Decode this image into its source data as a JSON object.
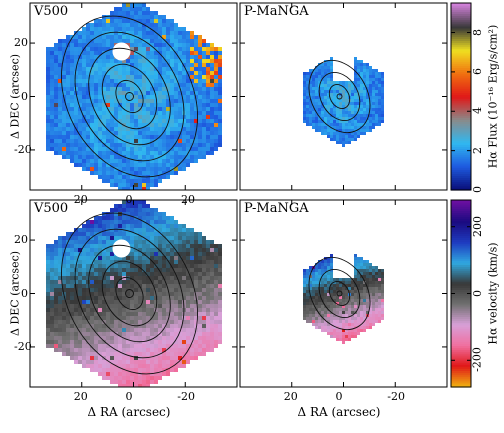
{
  "chart_data": [
    {
      "type": "heatmap",
      "row": 0,
      "col": 0,
      "panel_label": "V500",
      "quantity": "flux",
      "map": "large",
      "xlim": [
        40,
        -40
      ],
      "ylim": [
        -35,
        35
      ],
      "xticks": [
        "20",
        "0",
        "-20"
      ],
      "yticks": [
        "20",
        "0",
        "-20"
      ],
      "ylabel": "Δ DEC (arcsec)"
    },
    {
      "type": "heatmap",
      "row": 0,
      "col": 1,
      "panel_label": "P-MaNGA",
      "quantity": "flux",
      "map": "small",
      "xlim": [
        40,
        -40
      ],
      "ylim": [
        -35,
        35
      ]
    },
    {
      "type": "heatmap",
      "row": 1,
      "col": 0,
      "panel_label": "V500",
      "quantity": "velocity",
      "map": "large",
      "xlim": [
        40,
        -40
      ],
      "ylim": [
        -35,
        35
      ],
      "xticks": [
        "20",
        "0",
        "-20"
      ],
      "yticks": [
        "20",
        "0",
        "-20"
      ],
      "xlabel": "Δ RA (arcsec)",
      "ylabel": "Δ DEC (arcsec)"
    },
    {
      "type": "heatmap",
      "row": 1,
      "col": 1,
      "panel_label": "P-MaNGA",
      "quantity": "velocity",
      "map": "small",
      "xlim": [
        40,
        -40
      ],
      "ylim": [
        -35,
        35
      ],
      "xticks": [
        "20",
        "0",
        "-20"
      ],
      "xlabel": "Δ RA (arcsec)"
    }
  ],
  "colorbars": [
    {
      "label": "Hα Flux (10⁻¹⁶ Erg/s/cm²)",
      "range": [
        0,
        9.5
      ],
      "ticks": [
        0,
        2,
        4,
        6,
        8
      ],
      "tick_labels": [
        "0",
        "2",
        "4",
        "6",
        "8"
      ],
      "colors": [
        "#0a0f7a",
        "#1e5be0",
        "#30b8f0",
        "#8a8a8a",
        "#e01818",
        "#f07010",
        "#f0e020",
        "#383838",
        "#d080d8"
      ]
    },
    {
      "label": "Hα velocity (km/s)",
      "range": [
        -280,
        280
      ],
      "ticks": [
        -200,
        0,
        200
      ],
      "tick_labels": [
        "-200",
        "0",
        "200"
      ],
      "colors": [
        "#f0b010",
        "#e01818",
        "#f070a0",
        "#d8a0d8",
        "#707070",
        "#383838",
        "#30a8e0",
        "#1e3cc0",
        "#1a0a80",
        "#6a10a0"
      ]
    }
  ]
}
